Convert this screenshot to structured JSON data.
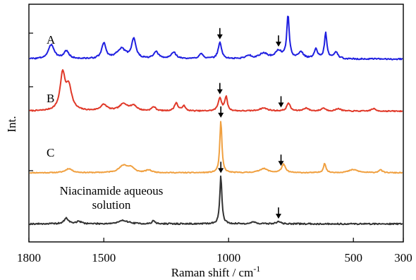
{
  "chart_data": {
    "type": "line",
    "xlabel": "Raman shift / cm",
    "xlabel_sup": "-1",
    "ylabel": "Int.",
    "xlim": [
      1800,
      300
    ],
    "x_reversed": true,
    "xticks": [
      1800,
      1500,
      1000,
      500,
      300
    ],
    "grid": false,
    "legend": "none",
    "series": [
      {
        "name": "A",
        "color": "#1f1fe0",
        "baseline": 0.08,
        "peaks": [
          [
            1710,
            0.26,
            14
          ],
          [
            1650,
            0.14,
            12
          ],
          [
            1500,
            0.28,
            10
          ],
          [
            1430,
            0.18,
            22
          ],
          [
            1380,
            0.36,
            10
          ],
          [
            1290,
            0.12,
            12
          ],
          [
            1220,
            0.12,
            12
          ],
          [
            1110,
            0.1,
            10
          ],
          [
            1035,
            0.3,
            8
          ],
          [
            920,
            0.06,
            14
          ],
          [
            860,
            0.1,
            20
          ],
          [
            800,
            0.14,
            16
          ],
          [
            762,
            0.78,
            6
          ],
          [
            710,
            0.12,
            12
          ],
          [
            650,
            0.18,
            8
          ],
          [
            611,
            0.46,
            6
          ],
          [
            570,
            0.12,
            10
          ]
        ],
        "arrows": [
          1035,
          800
        ]
      },
      {
        "name": "B",
        "color": "#e03828",
        "baseline": 0.06,
        "peaks": [
          [
            1665,
            0.7,
            12
          ],
          [
            1640,
            0.45,
            14
          ],
          [
            1500,
            0.12,
            16
          ],
          [
            1420,
            0.14,
            20
          ],
          [
            1380,
            0.1,
            14
          ],
          [
            1300,
            0.08,
            10
          ],
          [
            1210,
            0.16,
            8
          ],
          [
            1180,
            0.1,
            8
          ],
          [
            1035,
            0.26,
            8
          ],
          [
            1010,
            0.28,
            6
          ],
          [
            860,
            0.06,
            20
          ],
          [
            760,
            0.16,
            8
          ],
          [
            690,
            0.06,
            12
          ],
          [
            620,
            0.06,
            10
          ],
          [
            560,
            0.05,
            12
          ],
          [
            420,
            0.05,
            10
          ]
        ],
        "arrows": [
          1035,
          790
        ]
      },
      {
        "name": "C",
        "color": "#f0a040",
        "baseline": 0.04,
        "peaks": [
          [
            1640,
            0.08,
            16
          ],
          [
            1420,
            0.14,
            22
          ],
          [
            1390,
            0.08,
            14
          ],
          [
            1320,
            0.05,
            14
          ],
          [
            1031,
            1.0,
            5
          ],
          [
            860,
            0.08,
            20
          ],
          [
            780,
            0.16,
            9
          ],
          [
            615,
            0.18,
            6
          ],
          [
            500,
            0.06,
            22
          ],
          [
            392,
            0.06,
            8
          ]
        ],
        "arrows": [
          1031,
          790
        ]
      },
      {
        "name": "Niacinamide aqueous solution",
        "label_lines": [
          "Niacinamide aqueous",
          "solution"
        ],
        "color": "#333333",
        "baseline": 0.02,
        "peaks": [
          [
            1650,
            0.1,
            10
          ],
          [
            1600,
            0.04,
            14
          ],
          [
            1420,
            0.06,
            22
          ],
          [
            1300,
            0.06,
            6
          ],
          [
            1031,
            0.85,
            5
          ],
          [
            900,
            0.03,
            14
          ],
          [
            800,
            0.04,
            10
          ]
        ],
        "arrows": [
          1031,
          800
        ]
      }
    ]
  }
}
